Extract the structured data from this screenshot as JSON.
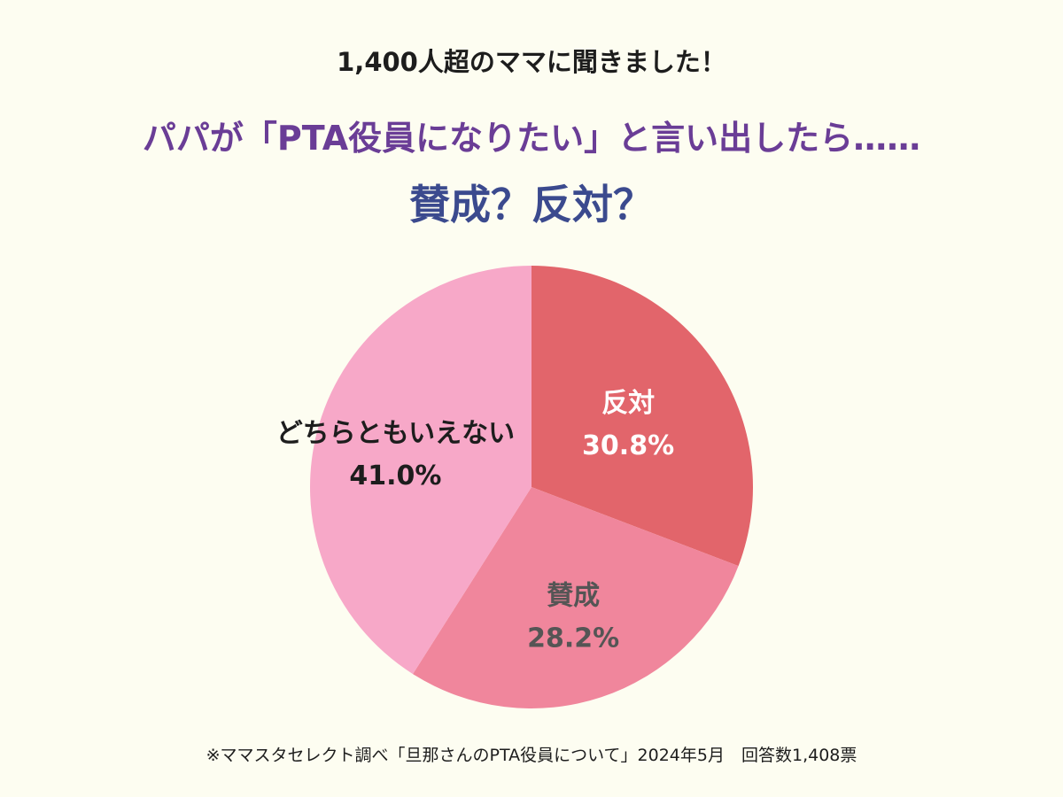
{
  "header": {
    "pre_title": "1,400人超のママに聞きました！",
    "title": "パパが「PTA役員になりたい」と言い出したら……",
    "subtitle": "賛成？反対？"
  },
  "chart_data": {
    "type": "pie",
    "start_angle_deg": 0,
    "direction": "clockwise",
    "slices": [
      {
        "label": "反対",
        "value": 30.8,
        "value_label": "30.8%",
        "color": "#e2656b",
        "text_color": "#ffffff"
      },
      {
        "label": "賛成",
        "value": 28.2,
        "value_label": "28.2%",
        "color": "#f0869c",
        "text_color": "#555555"
      },
      {
        "label": "どちらともいえない",
        "value": 41.0,
        "value_label": "41.0%",
        "color": "#f7a8c8",
        "text_color": "#1d1d1d"
      }
    ]
  },
  "footer": {
    "note": "※ママスタセレクト調べ「旦那さんのPTA役員について」2024年5月　回答数1,408票"
  }
}
